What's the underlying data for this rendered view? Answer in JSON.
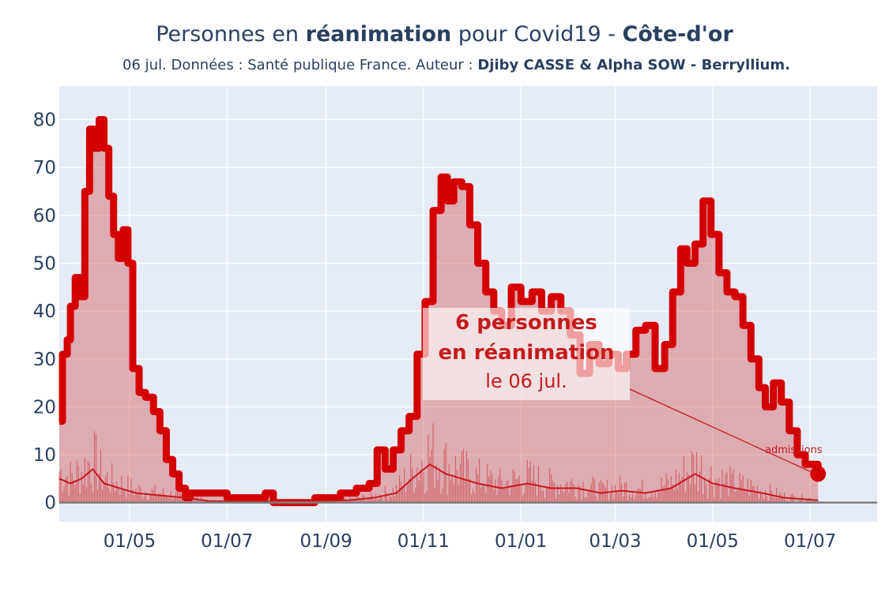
{
  "header": {
    "title_part1": "Personnes en ",
    "title_bold1": "réanimation",
    "title_part2": " pour Covid19 - ",
    "title_bold2": "Côte-d'or",
    "subtitle_part1": "06 jul. Données : Santé publique France. Auteur : ",
    "subtitle_bold": "Djiby CASSE & Alpha SOW - Berryllium."
  },
  "annotation": {
    "line1": "6 personnes",
    "line2": "en réanimation",
    "line3": "le 06 jul.",
    "admissions_count": "0",
    "admissions_label": "admissions"
  },
  "colors": {
    "main_line": "#d40000",
    "fill": "rgba(201,20,20,0.30)",
    "admissions": "#c51b1b",
    "plot_bg": "#e5ecf6",
    "grid": "#ffffff",
    "text": "#2a3f5f"
  },
  "chart_data": {
    "type": "area",
    "title": "Personnes en réanimation pour Covid19 - Côte-d'or",
    "xlabel": "",
    "ylabel": "",
    "x_range": [
      "2020-03-18",
      "2021-08-12"
    ],
    "ylim": [
      -4,
      87
    ],
    "y_ticks": [
      0,
      10,
      20,
      30,
      40,
      50,
      60,
      70,
      80
    ],
    "x_tick_labels": [
      "01/05",
      "01/07",
      "01/09",
      "01/11",
      "01/01",
      "01/03",
      "01/05",
      "01/07"
    ],
    "x_tick_dates": [
      "2020-05-01",
      "2020-07-01",
      "2020-09-01",
      "2020-11-01",
      "2021-01-01",
      "2021-03-01",
      "2021-05-01",
      "2021-07-01"
    ],
    "grid": true,
    "series": [
      {
        "key": "rea",
        "points": [
          [
            "2020-03-18",
            17
          ],
          [
            "2020-03-20",
            31
          ],
          [
            "2020-03-23",
            34
          ],
          [
            "2020-03-25",
            41
          ],
          [
            "2020-03-28",
            47
          ],
          [
            "2020-03-31",
            43
          ],
          [
            "2020-04-03",
            65
          ],
          [
            "2020-04-06",
            78
          ],
          [
            "2020-04-09",
            74
          ],
          [
            "2020-04-12",
            80
          ],
          [
            "2020-04-15",
            74
          ],
          [
            "2020-04-18",
            64
          ],
          [
            "2020-04-21",
            56
          ],
          [
            "2020-04-24",
            51
          ],
          [
            "2020-04-27",
            57
          ],
          [
            "2020-04-30",
            50
          ],
          [
            "2020-05-03",
            28
          ],
          [
            "2020-05-07",
            23
          ],
          [
            "2020-05-11",
            22
          ],
          [
            "2020-05-16",
            19
          ],
          [
            "2020-05-20",
            15
          ],
          [
            "2020-05-24",
            9
          ],
          [
            "2020-05-28",
            6
          ],
          [
            "2020-06-01",
            3
          ],
          [
            "2020-06-05",
            1
          ],
          [
            "2020-06-08",
            2
          ],
          [
            "2020-06-20",
            2
          ],
          [
            "2020-07-01",
            1
          ],
          [
            "2020-07-15",
            1
          ],
          [
            "2020-07-25",
            2
          ],
          [
            "2020-07-30",
            0
          ],
          [
            "2020-08-10",
            0
          ],
          [
            "2020-08-25",
            1
          ],
          [
            "2020-09-10",
            2
          ],
          [
            "2020-09-20",
            3
          ],
          [
            "2020-09-28",
            4
          ],
          [
            "2020-10-03",
            11
          ],
          [
            "2020-10-08",
            7
          ],
          [
            "2020-10-13",
            11
          ],
          [
            "2020-10-18",
            15
          ],
          [
            "2020-10-23",
            18
          ],
          [
            "2020-10-28",
            31
          ],
          [
            "2020-11-02",
            42
          ],
          [
            "2020-11-07",
            61
          ],
          [
            "2020-11-12",
            68
          ],
          [
            "2020-11-16",
            63
          ],
          [
            "2020-11-20",
            67
          ],
          [
            "2020-11-25",
            66
          ],
          [
            "2020-11-30",
            58
          ],
          [
            "2020-12-05",
            50
          ],
          [
            "2020-12-10",
            44
          ],
          [
            "2020-12-15",
            40
          ],
          [
            "2020-12-20",
            37
          ],
          [
            "2020-12-26",
            45
          ],
          [
            "2021-01-01",
            42
          ],
          [
            "2021-01-08",
            44
          ],
          [
            "2021-01-14",
            40
          ],
          [
            "2021-01-20",
            43
          ],
          [
            "2021-01-26",
            40
          ],
          [
            "2021-02-01",
            35
          ],
          [
            "2021-02-07",
            27
          ],
          [
            "2021-02-13",
            33
          ],
          [
            "2021-02-19",
            29
          ],
          [
            "2021-02-25",
            31
          ],
          [
            "2021-03-03",
            28
          ],
          [
            "2021-03-08",
            31
          ],
          [
            "2021-03-14",
            36
          ],
          [
            "2021-03-20",
            37
          ],
          [
            "2021-03-26",
            28
          ],
          [
            "2021-04-01",
            33
          ],
          [
            "2021-04-06",
            44
          ],
          [
            "2021-04-11",
            53
          ],
          [
            "2021-04-15",
            50
          ],
          [
            "2021-04-20",
            54
          ],
          [
            "2021-04-25",
            63
          ],
          [
            "2021-04-30",
            56
          ],
          [
            "2021-05-05",
            48
          ],
          [
            "2021-05-10",
            44
          ],
          [
            "2021-05-15",
            43
          ],
          [
            "2021-05-20",
            37
          ],
          [
            "2021-05-25",
            30
          ],
          [
            "2021-05-30",
            24
          ],
          [
            "2021-06-03",
            20
          ],
          [
            "2021-06-08",
            25
          ],
          [
            "2021-06-13",
            21
          ],
          [
            "2021-06-18",
            15
          ],
          [
            "2021-06-23",
            10
          ],
          [
            "2021-06-28",
            8
          ],
          [
            "2021-07-03",
            8
          ],
          [
            "2021-07-06",
            6
          ]
        ]
      },
      {
        "key": "admissions_avg",
        "points": [
          [
            "2020-03-18",
            5
          ],
          [
            "2020-03-25",
            4
          ],
          [
            "2020-04-01",
            5
          ],
          [
            "2020-04-08",
            7
          ],
          [
            "2020-04-15",
            4
          ],
          [
            "2020-04-25",
            3
          ],
          [
            "2020-05-05",
            2
          ],
          [
            "2020-05-20",
            1.5
          ],
          [
            "2020-06-05",
            1
          ],
          [
            "2020-06-20",
            0.3
          ],
          [
            "2020-08-01",
            0.2
          ],
          [
            "2020-09-15",
            0.5
          ],
          [
            "2020-10-01",
            1
          ],
          [
            "2020-10-15",
            2
          ],
          [
            "2020-10-25",
            5
          ],
          [
            "2020-11-05",
            8
          ],
          [
            "2020-11-15",
            6
          ],
          [
            "2020-11-25",
            5
          ],
          [
            "2020-12-05",
            4
          ],
          [
            "2020-12-20",
            3
          ],
          [
            "2021-01-05",
            4
          ],
          [
            "2021-01-20",
            3
          ],
          [
            "2021-02-05",
            3
          ],
          [
            "2021-02-20",
            2
          ],
          [
            "2021-03-05",
            2.5
          ],
          [
            "2021-03-20",
            2
          ],
          [
            "2021-04-05",
            3
          ],
          [
            "2021-04-20",
            6
          ],
          [
            "2021-05-01",
            4
          ],
          [
            "2021-05-15",
            3
          ],
          [
            "2021-06-01",
            2
          ],
          [
            "2021-06-15",
            1
          ],
          [
            "2021-07-06",
            0.5
          ]
        ]
      }
    ],
    "last_point": [
      "2021-07-06",
      6
    ]
  }
}
